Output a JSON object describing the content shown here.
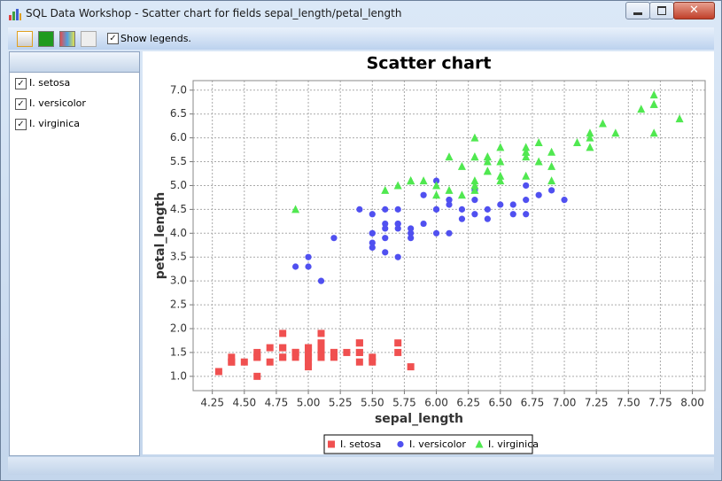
{
  "window": {
    "title": "SQL Data Workshop - Scatter chart for fields sepal_length/petal_length",
    "toolbar": {
      "show_legends": "Show legends."
    }
  },
  "chart_data": {
    "type": "scatter",
    "title": "Scatter chart",
    "x_label": "sepal_length",
    "y_label": "petal_length",
    "xlim": [
      4.1,
      8.1
    ],
    "ylim": [
      0.7,
      7.2
    ],
    "grid": true,
    "legend": "bottom",
    "xticks": [
      4.25,
      {
        "value": 4.5,
        "label": "4.50"
      },
      4.75,
      {
        "value": 5,
        "label": "5.00"
      },
      5.25,
      {
        "value": 5.5,
        "label": "5.50"
      },
      5.75,
      {
        "value": 6,
        "label": "6.00"
      },
      6.25,
      {
        "value": 6.5,
        "label": "6.50"
      },
      6.75,
      {
        "value": 7,
        "label": "7.00"
      },
      7.25,
      {
        "value": 7.5,
        "label": "7.50"
      },
      7.75,
      {
        "value": 8,
        "label": "8.00"
      }
    ],
    "yticks": [
      {
        "value": 1,
        "label": "1.0"
      },
      1.5,
      {
        "value": 2,
        "label": "2.0"
      },
      2.5,
      {
        "value": 3,
        "label": "3.0"
      },
      3.5,
      {
        "value": 4,
        "label": "4.0"
      },
      4.5,
      {
        "value": 5,
        "label": "5.0"
      },
      5.5,
      {
        "value": 6,
        "label": "6.0"
      },
      6.5,
      {
        "value": 7,
        "label": "7.0"
      }
    ],
    "series": [
      {
        "name": "I. setosa",
        "color": "#f05050",
        "marker": "square",
        "x": [
          5.1,
          4.9,
          4.7,
          4.6,
          5.0,
          5.4,
          4.6,
          5.0,
          4.4,
          4.9,
          5.4,
          4.8,
          4.8,
          4.3,
          5.8,
          5.7,
          5.4,
          5.1,
          5.7,
          5.1,
          5.4,
          5.1,
          4.6,
          5.1,
          4.8,
          5.0,
          5.0,
          5.2,
          5.2,
          4.7,
          4.8,
          5.4,
          5.2,
          5.5,
          4.9,
          5.0,
          5.5,
          4.9,
          4.4,
          5.1,
          5.0,
          4.5,
          4.4,
          5.0,
          5.1,
          4.8,
          5.1,
          4.6,
          5.3,
          5.0
        ],
        "values": [
          1.4,
          1.4,
          1.3,
          1.5,
          1.4,
          1.7,
          1.4,
          1.5,
          1.4,
          1.5,
          1.5,
          1.6,
          1.4,
          1.1,
          1.2,
          1.5,
          1.3,
          1.4,
          1.7,
          1.5,
          1.7,
          1.5,
          1.0,
          1.7,
          1.9,
          1.6,
          1.6,
          1.5,
          1.4,
          1.6,
          1.6,
          1.5,
          1.5,
          1.4,
          1.5,
          1.2,
          1.3,
          1.5,
          1.3,
          1.5,
          1.3,
          1.3,
          1.3,
          1.6,
          1.9,
          1.4,
          1.6,
          1.4,
          1.5,
          1.4
        ]
      },
      {
        "name": "I. versicolor",
        "color": "#5050f0",
        "marker": "circle",
        "x": [
          7.0,
          6.4,
          6.9,
          5.5,
          6.5,
          5.7,
          6.3,
          4.9,
          6.6,
          5.2,
          5.0,
          5.9,
          6.0,
          6.1,
          5.6,
          6.7,
          5.6,
          5.8,
          6.2,
          5.6,
          5.9,
          6.1,
          6.3,
          6.1,
          6.4,
          6.6,
          6.8,
          6.7,
          6.0,
          5.7,
          5.5,
          5.5,
          5.8,
          6.0,
          5.4,
          6.0,
          6.7,
          6.3,
          5.6,
          5.5,
          5.5,
          6.1,
          5.8,
          5.0,
          5.6,
          5.7,
          5.7,
          6.2,
          5.1,
          5.7
        ],
        "values": [
          4.7,
          4.5,
          4.9,
          4.0,
          4.6,
          4.5,
          4.7,
          3.3,
          4.6,
          3.9,
          3.5,
          4.2,
          4.0,
          4.7,
          3.6,
          4.4,
          4.5,
          4.1,
          4.5,
          3.9,
          4.8,
          4.0,
          4.9,
          4.7,
          4.3,
          4.4,
          4.8,
          5.0,
          4.5,
          3.5,
          3.8,
          3.7,
          3.9,
          5.1,
          4.5,
          4.5,
          4.7,
          4.4,
          4.1,
          4.0,
          4.4,
          4.6,
          4.0,
          3.3,
          4.2,
          4.2,
          4.2,
          4.3,
          3.0,
          4.1
        ]
      },
      {
        "name": "I. virginica",
        "color": "#50e850",
        "marker": "triangle",
        "x": [
          6.3,
          5.8,
          7.1,
          6.3,
          6.5,
          7.6,
          4.9,
          7.3,
          6.7,
          7.2,
          6.5,
          6.4,
          6.8,
          5.7,
          5.8,
          6.4,
          6.5,
          7.7,
          7.7,
          6.0,
          6.9,
          5.6,
          7.7,
          6.3,
          6.7,
          7.2,
          6.2,
          6.1,
          6.4,
          7.2,
          7.4,
          7.9,
          6.4,
          6.3,
          6.1,
          7.7,
          6.3,
          6.4,
          6.0,
          6.9,
          6.7,
          6.9,
          5.8,
          6.8,
          6.7,
          6.7,
          6.3,
          6.5,
          6.2,
          5.9
        ],
        "values": [
          6.0,
          5.1,
          5.9,
          5.6,
          5.8,
          6.6,
          4.5,
          6.3,
          5.8,
          6.1,
          5.1,
          5.3,
          5.5,
          5.0,
          5.1,
          5.3,
          5.5,
          6.7,
          6.9,
          5.0,
          5.7,
          4.9,
          6.7,
          4.9,
          5.7,
          6.0,
          4.8,
          4.9,
          5.6,
          5.8,
          6.1,
          6.4,
          5.6,
          5.1,
          5.6,
          6.1,
          5.6,
          5.5,
          4.8,
          5.4,
          5.6,
          5.1,
          5.1,
          5.9,
          5.7,
          5.2,
          5.0,
          5.2,
          5.4,
          5.1
        ]
      }
    ]
  }
}
